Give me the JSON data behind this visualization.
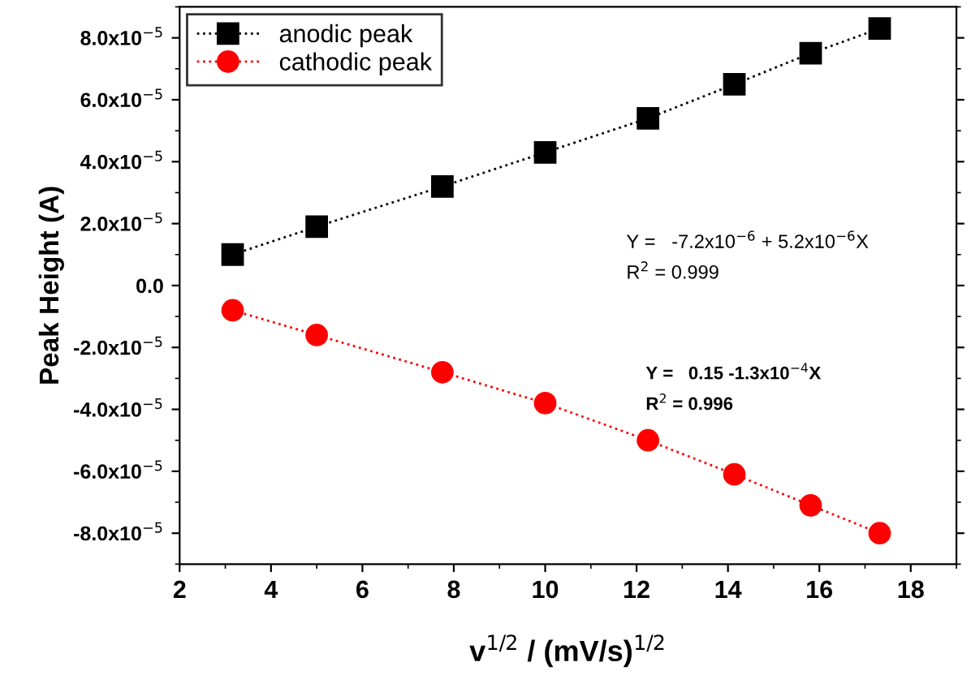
{
  "chart_data": {
    "type": "line",
    "xlabel": "v$^{1/2}$ / (mV/s)$^{1/2}$",
    "ylabel": "Peak Height (A)",
    "xlim": [
      2,
      19
    ],
    "ylim": [
      -9e-05,
      9e-05
    ],
    "xticks": [
      2,
      4,
      6,
      8,
      10,
      12,
      14,
      16,
      18
    ],
    "yticks": [
      {
        "value": -8e-05,
        "label": "-8.0x10$^{−5}$"
      },
      {
        "value": -6e-05,
        "label": "-6.0x10$^{−5}$"
      },
      {
        "value": -4e-05,
        "label": "-4.0x10$^{−5}$"
      },
      {
        "value": -2e-05,
        "label": "-2.0x10$^{−5}$"
      },
      {
        "value": 0,
        "label": "0.0"
      },
      {
        "value": 2e-05,
        "label": "2.0x10$^{−5}$"
      },
      {
        "value": 4e-05,
        "label": "4.0x10$^{−5}$"
      },
      {
        "value": 6e-05,
        "label": "6.0x10$^{−5}$"
      },
      {
        "value": 8e-05,
        "label": "8.0x10$^{−5}$"
      }
    ],
    "x": [
      3.16,
      5.0,
      7.75,
      10.0,
      12.25,
      14.14,
      15.81,
      17.32
    ],
    "series": [
      {
        "name": "anodic peak",
        "color": "#000000",
        "marker": "square",
        "values": [
          1e-05,
          1.9e-05,
          3.2e-05,
          4.3e-05,
          5.4e-05,
          6.5e-05,
          7.5e-05,
          8.3e-05
        ]
      },
      {
        "name": "cathodic peak",
        "color": "#ff0000",
        "marker": "circle",
        "values": [
          -8e-06,
          -1.6e-05,
          -2.8e-05,
          -3.8e-05,
          -5e-05,
          -6.1e-05,
          -7.1e-05,
          -8e-05
        ]
      }
    ],
    "line_style": "dotted",
    "legend": "top left",
    "grid": false,
    "annotations": [
      "Y =   -7.2x10$^{−6}$ + 5.2x10$^{−6}$X",
      "R$^{2}$ = 0.999",
      "Y =   0.15 -1.3x10$^{−4}$X",
      "R$^{2}$ = 0.996"
    ]
  }
}
